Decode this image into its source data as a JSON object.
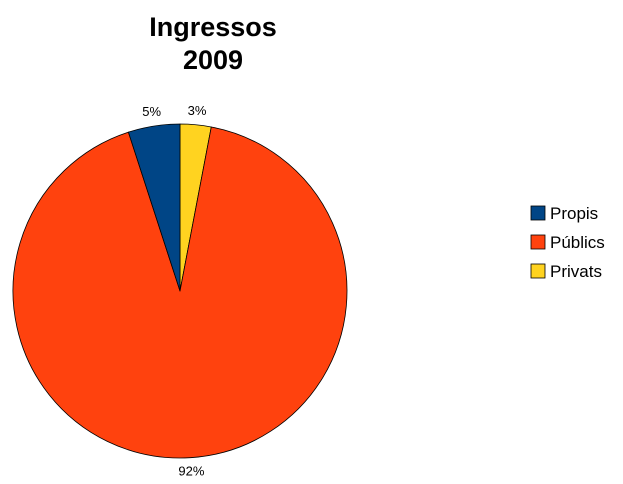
{
  "chart_data": {
    "type": "pie",
    "title_lines": [
      "Ingressos",
      "2009"
    ],
    "categories": [
      "Propis",
      "Públics",
      "Privats"
    ],
    "values": [
      5,
      92,
      3
    ],
    "value_labels": [
      "5%",
      "92%",
      "3%"
    ],
    "colors": [
      "#004586",
      "#ff420e",
      "#ffd320"
    ],
    "legend_position": "right"
  }
}
